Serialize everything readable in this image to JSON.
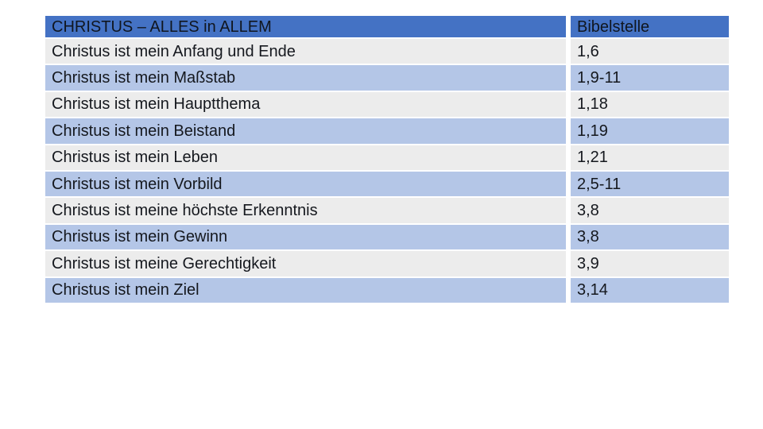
{
  "table": {
    "header": {
      "topic": "CHRISTUS – ALLES in ALLEM",
      "reference": "Bibelstelle"
    },
    "rows": [
      {
        "topic": "Christus ist mein Anfang und Ende",
        "reference": "1,6"
      },
      {
        "topic": "Christus ist mein Maßstab",
        "reference": "1,9-11"
      },
      {
        "topic": "Christus ist mein Hauptthema",
        "reference": "1,18"
      },
      {
        "topic": "Christus ist mein Beistand",
        "reference": "1,19"
      },
      {
        "topic": "Christus ist mein Leben",
        "reference": "1,21"
      },
      {
        "topic": "Christus ist mein Vorbild",
        "reference": "2,5-11"
      },
      {
        "topic": "Christus ist meine höchste Erkenntnis",
        "reference": "3,8"
      },
      {
        "topic": "Christus ist mein Gewinn",
        "reference": "3,8"
      },
      {
        "topic": "Christus ist meine Gerechtigkeit",
        "reference": "3,9"
      },
      {
        "topic": "Christus ist mein Ziel",
        "reference": "3,14"
      }
    ],
    "colors": {
      "header_bg": "#4472c4",
      "band_blue": "#b4c6e7",
      "band_gray": "#ececec",
      "text_color": "#15181e",
      "header_text": "#10161f",
      "page_bg": "#ffffff"
    }
  }
}
